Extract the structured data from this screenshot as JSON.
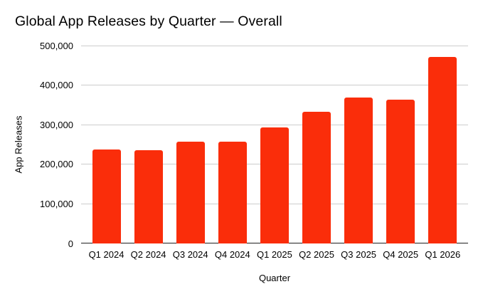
{
  "chart_data": {
    "type": "bar",
    "title": "Global App Releases by Quarter — Overall",
    "xlabel": "Quarter",
    "ylabel": "App Releases",
    "categories": [
      "Q1 2024",
      "Q2 2024",
      "Q3 2024",
      "Q4 2024",
      "Q1 2025",
      "Q2 2025",
      "Q3 2025",
      "Q4 2025",
      "Q1 2026"
    ],
    "values": [
      237000,
      235000,
      257000,
      258000,
      294000,
      333000,
      368000,
      363000,
      472000
    ],
    "ylim": [
      0,
      500000
    ],
    "ytick_interval": 100000,
    "ytick_labels": [
      "0",
      "100,000",
      "200,000",
      "300,000",
      "400,000",
      "500,000"
    ],
    "grid": true,
    "legend": "none",
    "bar_color": "#FA2D0A"
  },
  "colors": {
    "bar": "#FA2D0A",
    "gridline": "#CCCCCC",
    "axis_line": "#212121",
    "text": "#000000",
    "background": "#FFFFFF"
  }
}
